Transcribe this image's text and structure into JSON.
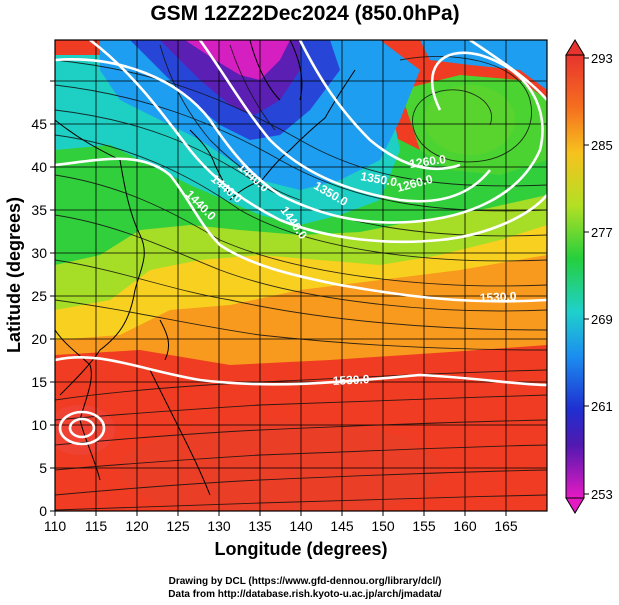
{
  "title": "GSM 12Z22Dec2024 (850.0hPa)",
  "x_axis": {
    "label": "Longitude (degrees)",
    "ticks": [
      "110",
      "115",
      "120",
      "125",
      "130",
      "135",
      "140",
      "145",
      "150",
      "155",
      "160",
      "165"
    ]
  },
  "y_axis": {
    "label": "Latitude  (degrees)",
    "ticks": [
      "0",
      "5",
      "10",
      "15",
      "20",
      "25",
      "30",
      "35",
      "40",
      "45"
    ]
  },
  "colorbar": {
    "ticks": [
      "293",
      "285",
      "277",
      "269",
      "261",
      "253"
    ],
    "min": 253,
    "max": 293
  },
  "contours": {
    "labels": [
      "1440.0",
      "1440.0",
      "1440.0",
      "1350.0",
      "1260.0",
      "1260.0",
      "1350.0",
      "1440.0",
      "1530.0",
      "1530.0"
    ]
  },
  "credits": {
    "line1": "Drawing by DCL (https://www.gfd-dennou.org/library/dcl/)",
    "line2": "Data from http://database.rish.kyoto-u.ac.jp/arch/jmadata/"
  }
}
